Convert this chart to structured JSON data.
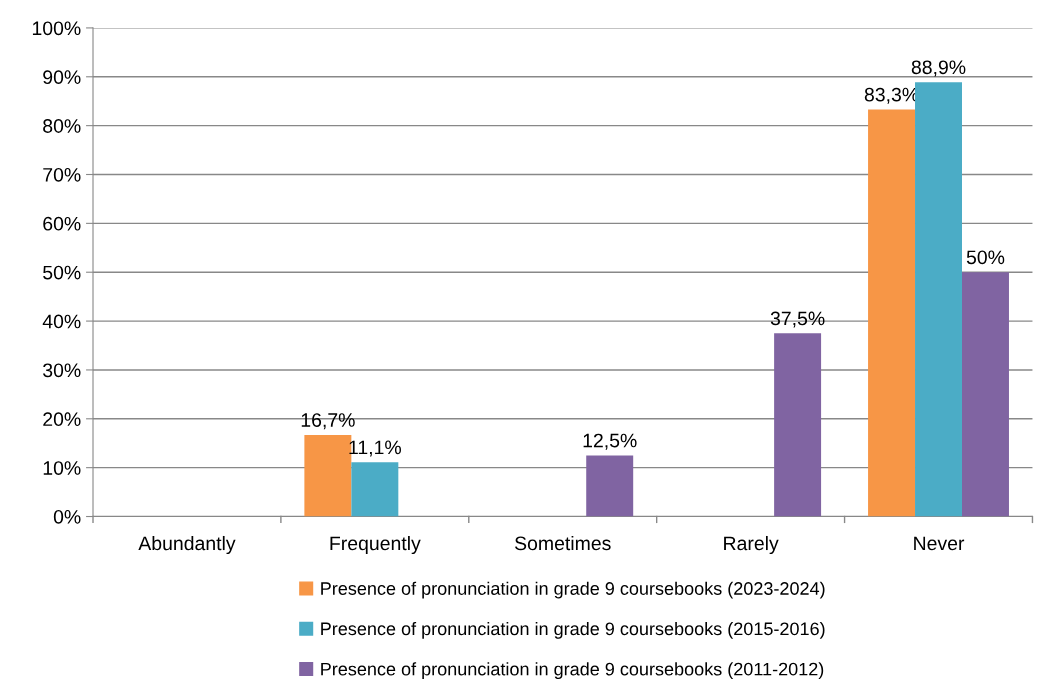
{
  "chart_data": {
    "type": "bar",
    "categories": [
      "Abundantly",
      "Frequently",
      "Sometimes",
      "Rarely",
      "Never"
    ],
    "series": [
      {
        "name": "Presence of pronunciation in grade 9 coursebooks (2023-2024)",
        "color": "#f79646",
        "values": [
          0,
          16.7,
          0,
          0,
          83.3
        ],
        "value_labels": [
          null,
          "16,7%",
          null,
          null,
          "83,3%"
        ]
      },
      {
        "name": "Presence of pronunciation in grade 9 coursebooks (2015-2016)",
        "color": "#4bacc6",
        "values": [
          0,
          11.1,
          0,
          0,
          88.9
        ],
        "value_labels": [
          null,
          "11,1%",
          null,
          null,
          "88,9%"
        ]
      },
      {
        "name": "Presence of pronunciation in grade 9 coursebooks (2011-2012)",
        "color": "#8064a2",
        "values": [
          0,
          0,
          12.5,
          37.5,
          50
        ],
        "value_labels": [
          null,
          null,
          "12,5%",
          "37,5%",
          "50%"
        ]
      }
    ],
    "ylim": [
      0,
      100
    ],
    "yticks": [
      {
        "value": 0,
        "label": "0%"
      },
      {
        "value": 10,
        "label": "10%"
      },
      {
        "value": 20,
        "label": "20%"
      },
      {
        "value": 30,
        "label": "30%"
      },
      {
        "value": 40,
        "label": "40%"
      },
      {
        "value": 50,
        "label": "50%"
      },
      {
        "value": 60,
        "label": "60%"
      },
      {
        "value": 70,
        "label": "70%"
      },
      {
        "value": 80,
        "label": "80%"
      },
      {
        "value": 90,
        "label": "90%"
      },
      {
        "value": 100,
        "label": "100%"
      }
    ],
    "grid": "y",
    "legend": "bottom"
  }
}
